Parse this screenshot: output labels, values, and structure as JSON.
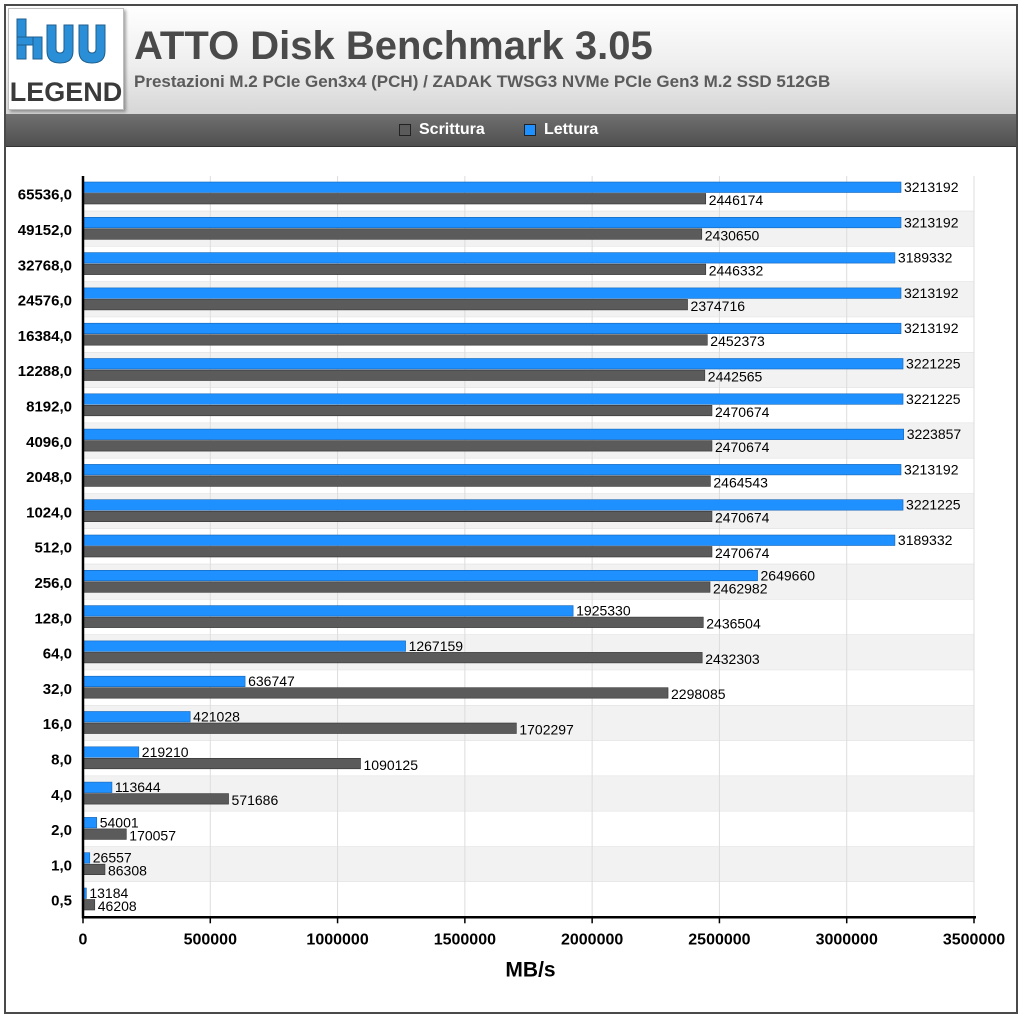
{
  "header": {
    "title": "ATTO Disk Benchmark 3.05",
    "subtitle": "Prestazioni M.2 PCIe Gen3x4 (PCH) / ZADAK TWSG3 NVMe PCIe Gen3 M.2 SSD 512GB"
  },
  "logo": {
    "text": "HU LEGEND"
  },
  "colors": {
    "scrittura": "#5b5b5b",
    "lettura": "#1e90ff",
    "grid": "#dddddd",
    "axis": "#000000"
  },
  "chart_data": {
    "type": "bar",
    "orientation": "horizontal",
    "title": "ATTO Disk Benchmark 3.05",
    "subtitle": "Prestazioni M.2 PCIe Gen3x4 (PCH) / ZADAK TWSG3 NVMe PCIe Gen3 M.2 SSD 512GB",
    "xlabel": "MB/s",
    "ylabel": "",
    "xlim": [
      0,
      3500000
    ],
    "xticks": [
      "0",
      "500000",
      "1000000",
      "1500000",
      "2000000",
      "2500000",
      "3000000",
      "3500000"
    ],
    "grid": true,
    "legend_position": "top",
    "categories": [
      "65536,0",
      "49152,0",
      "32768,0",
      "24576,0",
      "16384,0",
      "12288,0",
      "8192,0",
      "4096,0",
      "2048,0",
      "1024,0",
      "512,0",
      "256,0",
      "128,0",
      "64,0",
      "32,0",
      "16,0",
      "8,0",
      "4,0",
      "2,0",
      "1,0",
      "0,5"
    ],
    "series": [
      {
        "name": "Scrittura",
        "color": "#5b5b5b",
        "values": [
          2446174,
          2430650,
          2446332,
          2374716,
          2452373,
          2442565,
          2470674,
          2470674,
          2464543,
          2470674,
          2470674,
          2462982,
          2436504,
          2432303,
          2298085,
          1702297,
          1090125,
          571686,
          170057,
          86308,
          46208
        ]
      },
      {
        "name": "Lettura",
        "color": "#1e90ff",
        "values": [
          3213192,
          3213192,
          3189332,
          3213192,
          3213192,
          3221225,
          3221225,
          3223857,
          3213192,
          3221225,
          3189332,
          2649660,
          1925330,
          1267159,
          636747,
          421028,
          219210,
          113644,
          54001,
          26557,
          13184
        ]
      }
    ]
  }
}
